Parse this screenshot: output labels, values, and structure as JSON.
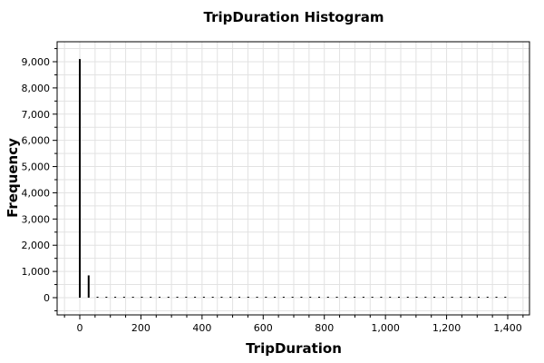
{
  "chart_data": {
    "type": "bar",
    "title": "TripDuration Histogram",
    "xlabel": "TripDuration",
    "ylabel": "Frequency",
    "xlim": [
      -80,
      1450
    ],
    "ylim": [
      -700,
      9800
    ],
    "x_ticks": [
      0,
      200,
      400,
      600,
      800,
      1000,
      1200,
      1400
    ],
    "x_tick_labels": [
      "0",
      "200",
      "400",
      "600",
      "800",
      "1,000",
      "1,200",
      "1,400"
    ],
    "y_ticks": [
      0,
      1000,
      2000,
      3000,
      4000,
      5000,
      6000,
      7000,
      8000,
      9000
    ],
    "y_tick_labels": [
      "0",
      "1,000",
      "2,000",
      "3,000",
      "4,000",
      "5,000",
      "6,000",
      "7,000",
      "8,000",
      "9,000"
    ],
    "grid": true,
    "bin_width": 29,
    "x": [
      0,
      29,
      58,
      87,
      116,
      145,
      174,
      203,
      232,
      261,
      290,
      319,
      348,
      377,
      406,
      435,
      464,
      493,
      522,
      551,
      580,
      609,
      638,
      667,
      696,
      725,
      754,
      783,
      812,
      841,
      870,
      899,
      928,
      957,
      986,
      1015,
      1044,
      1073,
      1102,
      1131,
      1160,
      1189,
      1218,
      1247,
      1276,
      1305,
      1334,
      1363,
      1392
    ],
    "values": [
      9100,
      850,
      30,
      20,
      15,
      12,
      10,
      10,
      8,
      8,
      7,
      7,
      6,
      6,
      5,
      5,
      5,
      5,
      4,
      4,
      4,
      4,
      3,
      3,
      3,
      3,
      3,
      3,
      2,
      2,
      2,
      2,
      2,
      2,
      2,
      2,
      2,
      2,
      2,
      2,
      2,
      2,
      2,
      2,
      2,
      2,
      2,
      2,
      25
    ]
  },
  "colors": {
    "bar": "#000000",
    "grid": "#e2e2e2",
    "background": "#ffffff"
  }
}
